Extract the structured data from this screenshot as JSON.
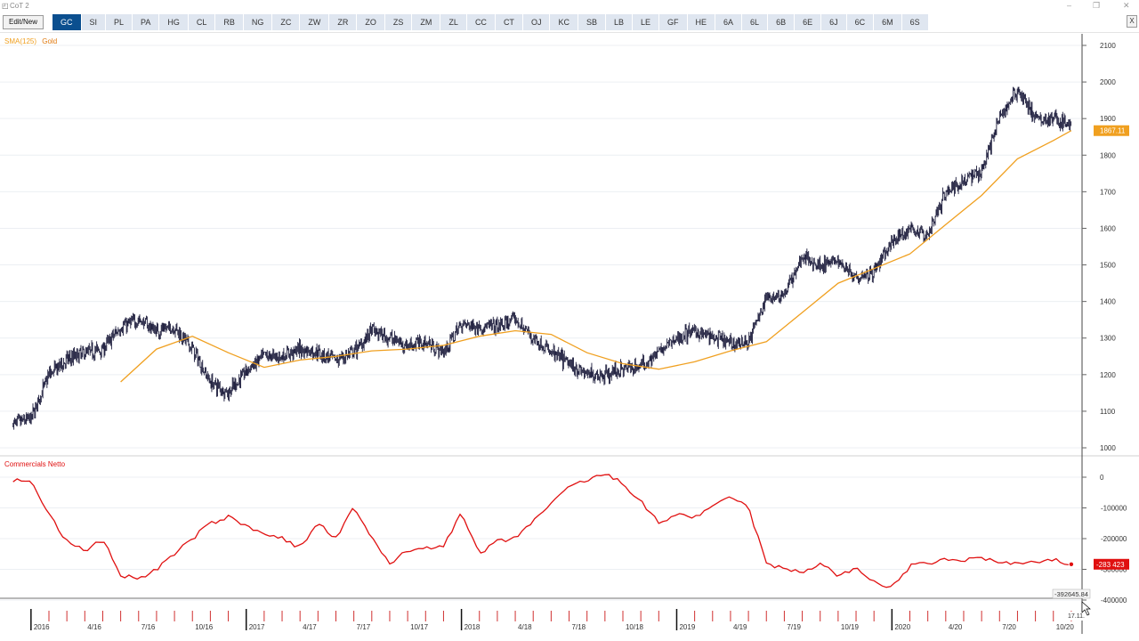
{
  "window": {
    "title": "CoT 2",
    "icon": "chart-app-icon",
    "controls": [
      "–",
      "❐",
      "✕"
    ]
  },
  "toolbar": {
    "edit_label": "Edit/New",
    "close_label": "X",
    "tabs": [
      "GC",
      "SI",
      "PL",
      "PA",
      "HG",
      "CL",
      "RB",
      "NG",
      "ZC",
      "ZW",
      "ZR",
      "ZO",
      "ZS",
      "ZM",
      "ZL",
      "CC",
      "CT",
      "OJ",
      "KC",
      "SB",
      "LB",
      "LE",
      "GF",
      "HE",
      "6A",
      "6L",
      "6B",
      "6E",
      "6J",
      "6C",
      "6M",
      "6S"
    ],
    "active_tab": "GC"
  },
  "price_panel": {
    "legend_sma": "SMA(125)",
    "legend_name": "Gold",
    "sma_color": "#f0a020",
    "y_ticks": [
      "2100",
      "2000",
      "1900",
      "1800",
      "1700",
      "1600",
      "1500",
      "1400",
      "1300",
      "1200",
      "1100",
      "1000"
    ],
    "last_price_label": "1867.11",
    "bar_color": "#1a1a3a"
  },
  "cot_panel": {
    "legend": "Commercials Netto",
    "line_color": "#e01010",
    "y_ticks": [
      "0",
      "-100000",
      "-200000",
      "-300000",
      "-400000"
    ],
    "last_value_label": "-283 423",
    "crosshair_label": "-392645.84"
  },
  "x_axis": {
    "labels": [
      "2016",
      "4/16",
      "7/16",
      "10/16",
      "2017",
      "4/17",
      "7/17",
      "10/17",
      "2018",
      "4/18",
      "7/18",
      "10/18",
      "2019",
      "4/19",
      "7/19",
      "10/19",
      "2020",
      "4/20",
      "7/20",
      "10/20"
    ],
    "cursor_date": "17.11."
  },
  "chart_data": [
    {
      "type": "line",
      "title": "Gold",
      "series": [
        {
          "name": "Gold",
          "x": [
            "2015-12",
            "2016-01",
            "2016-02",
            "2016-03",
            "2016-04",
            "2016-05",
            "2016-06",
            "2016-07",
            "2016-08",
            "2016-09",
            "2016-10",
            "2016-11",
            "2016-12",
            "2017-01",
            "2017-02",
            "2017-03",
            "2017-04",
            "2017-05",
            "2017-06",
            "2017-07",
            "2017-08",
            "2017-09",
            "2017-10",
            "2017-11",
            "2017-12",
            "2018-01",
            "2018-02",
            "2018-03",
            "2018-04",
            "2018-05",
            "2018-06",
            "2018-07",
            "2018-08",
            "2018-09",
            "2018-10",
            "2018-11",
            "2018-12",
            "2019-01",
            "2019-02",
            "2019-03",
            "2019-04",
            "2019-05",
            "2019-06",
            "2019-07",
            "2019-08",
            "2019-09",
            "2019-10",
            "2019-11",
            "2019-12",
            "2020-01",
            "2020-02",
            "2020-03",
            "2020-04",
            "2020-05",
            "2020-06",
            "2020-07",
            "2020-08",
            "2020-09",
            "2020-10",
            "2020-11"
          ],
          "values": [
            1065,
            1080,
            1200,
            1240,
            1260,
            1270,
            1330,
            1350,
            1320,
            1330,
            1270,
            1180,
            1150,
            1210,
            1250,
            1250,
            1270,
            1260,
            1240,
            1260,
            1320,
            1300,
            1280,
            1290,
            1260,
            1340,
            1330,
            1330,
            1350,
            1300,
            1260,
            1230,
            1200,
            1200,
            1215,
            1225,
            1260,
            1300,
            1320,
            1300,
            1285,
            1290,
            1410,
            1420,
            1520,
            1500,
            1510,
            1470,
            1480,
            1560,
            1600,
            1580,
            1700,
            1730,
            1760,
            1900,
            1980,
            1900,
            1900,
            1880
          ]
        },
        {
          "name": "SMA(125)",
          "x": [
            "2016-06",
            "2016-08",
            "2016-10",
            "2016-12",
            "2017-02",
            "2017-04",
            "2017-06",
            "2017-08",
            "2017-10",
            "2017-12",
            "2018-02",
            "2018-04",
            "2018-06",
            "2018-08",
            "2018-10",
            "2018-12",
            "2019-02",
            "2019-04",
            "2019-06",
            "2019-08",
            "2019-10",
            "2019-12",
            "2020-02",
            "2020-04",
            "2020-06",
            "2020-08",
            "2020-10",
            "2020-11"
          ],
          "values": [
            1180,
            1270,
            1305,
            1260,
            1220,
            1240,
            1250,
            1265,
            1270,
            1280,
            1305,
            1320,
            1310,
            1260,
            1230,
            1215,
            1235,
            1265,
            1290,
            1370,
            1450,
            1490,
            1530,
            1610,
            1690,
            1790,
            1840,
            1867
          ]
        }
      ],
      "ylim": [
        1000,
        2100
      ]
    },
    {
      "type": "line",
      "title": "Commercials Netto",
      "series": [
        {
          "name": "Commercials Netto",
          "x": [
            "2015-12",
            "2016-01",
            "2016-02",
            "2016-03",
            "2016-04",
            "2016-05",
            "2016-06",
            "2016-07",
            "2016-08",
            "2016-09",
            "2016-10",
            "2016-11",
            "2016-12",
            "2017-01",
            "2017-02",
            "2017-03",
            "2017-04",
            "2017-05",
            "2017-06",
            "2017-07",
            "2017-08",
            "2017-09",
            "2017-10",
            "2017-11",
            "2017-12",
            "2018-01",
            "2018-02",
            "2018-03",
            "2018-04",
            "2018-05",
            "2018-06",
            "2018-07",
            "2018-08",
            "2018-09",
            "2018-10",
            "2018-11",
            "2018-12",
            "2019-01",
            "2019-02",
            "2019-03",
            "2019-04",
            "2019-05",
            "2019-06",
            "2019-07",
            "2019-08",
            "2019-09",
            "2019-10",
            "2019-11",
            "2019-12",
            "2020-01",
            "2020-02",
            "2020-03",
            "2020-04",
            "2020-05",
            "2020-06",
            "2020-07",
            "2020-08",
            "2020-09",
            "2020-10",
            "2020-11"
          ],
          "values": [
            -10000,
            -15000,
            -120000,
            -210000,
            -240000,
            -200000,
            -320000,
            -330000,
            -300000,
            -250000,
            -200000,
            -150000,
            -130000,
            -160000,
            -180000,
            -200000,
            -230000,
            -150000,
            -200000,
            -100000,
            -200000,
            -280000,
            -240000,
            -230000,
            -220000,
            -120000,
            -250000,
            -210000,
            -200000,
            -140000,
            -90000,
            -30000,
            -10000,
            10000,
            -20000,
            -80000,
            -150000,
            -120000,
            -130000,
            -100000,
            -60000,
            -100000,
            -280000,
            -300000,
            -310000,
            -280000,
            -320000,
            -300000,
            -340000,
            -360000,
            -290000,
            -280000,
            -270000,
            -270000,
            -260000,
            -280000,
            -280000,
            -280000,
            -270000,
            -283423
          ]
        }
      ],
      "ylim": [
        -400000,
        0
      ]
    }
  ]
}
